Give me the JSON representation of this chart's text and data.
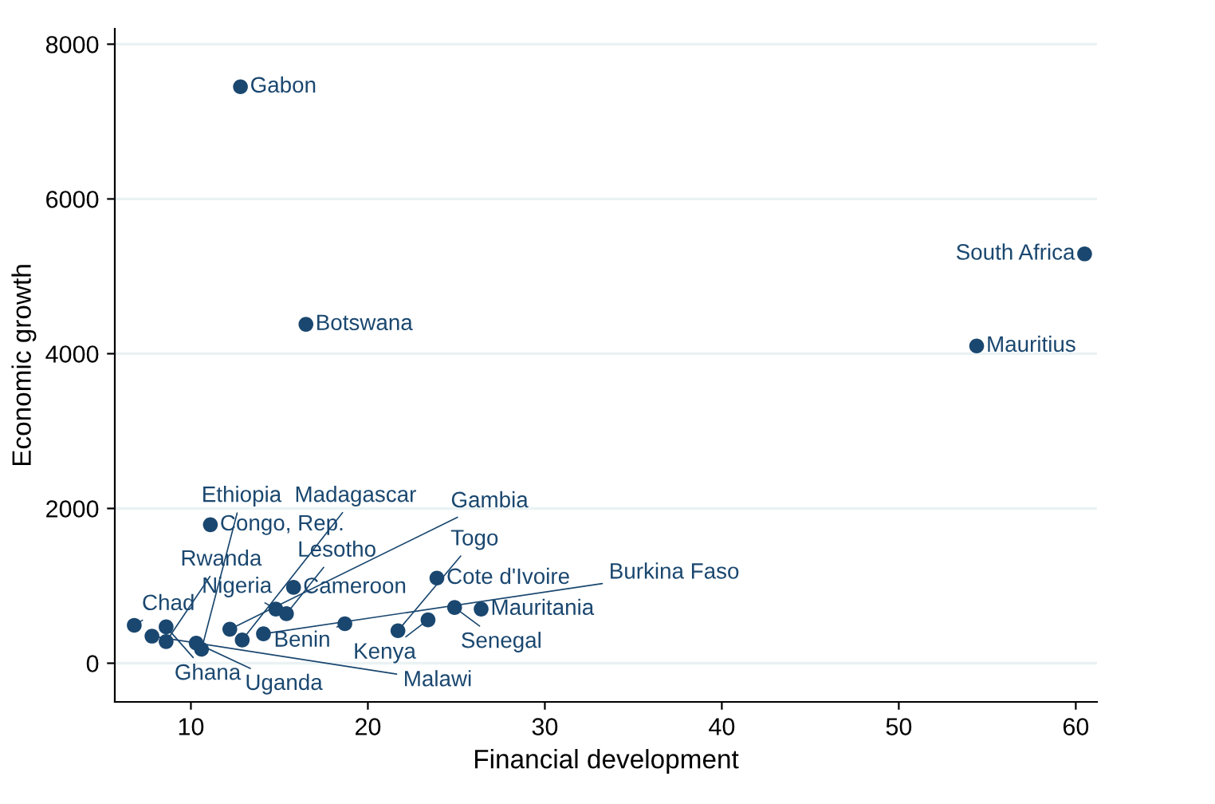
{
  "chart_data": {
    "type": "scatter",
    "xlabel": "Financial development",
    "ylabel": "Economic growth",
    "xlim": [
      5.7,
      61.2
    ],
    "ylim": [
      -500,
      8200
    ],
    "xticks": [
      10,
      20,
      30,
      40,
      50,
      60
    ],
    "yticks": [
      0,
      2000,
      4000,
      6000,
      8000
    ],
    "grid": "y",
    "marker": "circle",
    "legend": false,
    "series": [
      {
        "color": "#1a476f",
        "x": [
          12.8,
          16.5,
          60.5,
          54.4,
          11.1,
          15.8,
          23.9,
          24.9,
          26.4,
          23.4,
          14.8,
          15.4,
          18.7,
          21.7,
          6.8,
          8.6,
          7.8,
          8.6,
          10.3,
          10.6,
          12.2,
          12.9,
          14.1
        ],
        "values": [
          7450,
          4380,
          5290,
          4100,
          1790,
          980,
          1100,
          720,
          700,
          560,
          700,
          640,
          510,
          420,
          490,
          470,
          350,
          280,
          260,
          180,
          440,
          300,
          380
        ]
      }
    ],
    "annotations": [
      {
        "text": "Gabon",
        "x": 12.8,
        "y": 7450
      },
      {
        "text": "Botswana",
        "x": 16.5,
        "y": 4380
      },
      {
        "text": "South Africa",
        "x": 60.5,
        "y": 5290
      },
      {
        "text": "Mauritius",
        "x": 54.4,
        "y": 4100
      },
      {
        "text": "Congo, Rep.",
        "x": 11.1,
        "y": 1790
      },
      {
        "text": "Cameroon",
        "x": 15.8,
        "y": 980
      },
      {
        "text": "Cote d'Ivoire",
        "x": 23.9,
        "y": 1100
      },
      {
        "text": "Senegal",
        "x": 24.9,
        "y": 720
      },
      {
        "text": "Mauritania",
        "x": 26.4,
        "y": 700
      },
      {
        "text": "Kenya",
        "x": 23.4,
        "y": 560
      },
      {
        "text": "Nigeria",
        "x": 14.8,
        "y": 700
      },
      {
        "text": "Lesotho",
        "x": 15.4,
        "y": 640
      },
      {
        "text": "Benin",
        "x": 18.7,
        "y": 510
      },
      {
        "text": "Togo",
        "x": 21.7,
        "y": 420
      },
      {
        "text": "Chad",
        "x": 6.8,
        "y": 490
      },
      {
        "text": "Ghana",
        "x": 8.6,
        "y": 470
      },
      {
        "text": "Malawi",
        "x": 7.8,
        "y": 350
      },
      {
        "text": "Rwanda",
        "x": 8.6,
        "y": 280
      },
      {
        "text": "Uganda",
        "x": 10.3,
        "y": 260
      },
      {
        "text": "Ethiopia",
        "x": 10.6,
        "y": 180
      },
      {
        "text": "Gambia",
        "x": 12.2,
        "y": 440
      },
      {
        "text": "Madagascar",
        "x": 12.9,
        "y": 300
      },
      {
        "text": "Burkina Faso",
        "x": 14.1,
        "y": 380
      }
    ]
  }
}
